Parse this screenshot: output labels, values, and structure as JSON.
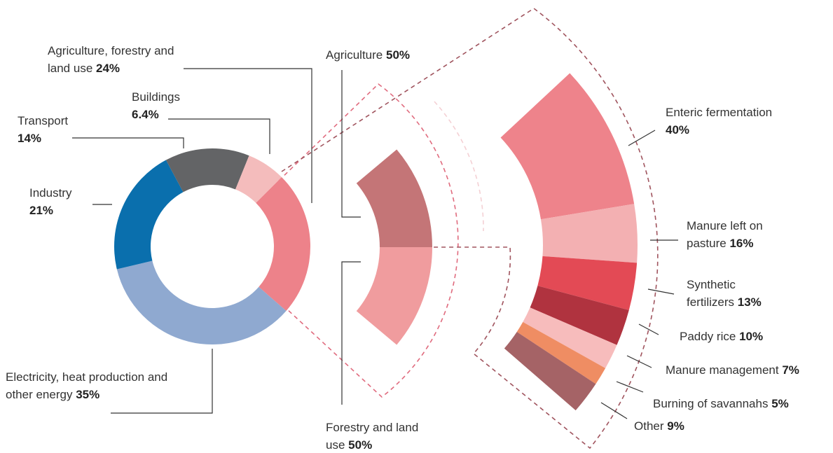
{
  "chart_data": [
    {
      "type": "donut",
      "categories": [
        "Agriculture, forestry and land use",
        "Electricity, heat production and other energy",
        "Industry",
        "Transport",
        "Buildings"
      ],
      "values": [
        24,
        35,
        21,
        14,
        6.4
      ],
      "value_labels": [
        "24%",
        "35%",
        "21%",
        "14%",
        "6.4%"
      ],
      "colors": [
        "#ed828a",
        "#8fa9d0",
        "#0a6fad",
        "#636466",
        "#f4bcbc"
      ]
    },
    {
      "type": "donut",
      "categories": [
        "Agriculture",
        "Forestry and land use"
      ],
      "values": [
        50,
        50
      ],
      "value_labels": [
        "50%",
        "50%"
      ],
      "colors": [
        "#c47577",
        "#f09c9e"
      ]
    },
    {
      "type": "donut",
      "categories": [
        "Enteric fermentation",
        "Manure left on pasture",
        "Synthetic fertilizers",
        "Paddy rice",
        "Manure management",
        "Burning of savannahs",
        "Other"
      ],
      "values": [
        40,
        16,
        13,
        10,
        7,
        5,
        9
      ],
      "value_labels": [
        "40%",
        "16%",
        "13%",
        "10%",
        "7%",
        "5%",
        "9%"
      ],
      "colors": [
        "#ee838b",
        "#f3b0b2",
        "#e34a55",
        "#b0333f",
        "#f7bcbc",
        "#ef8d63",
        "#a56366"
      ]
    }
  ]
}
